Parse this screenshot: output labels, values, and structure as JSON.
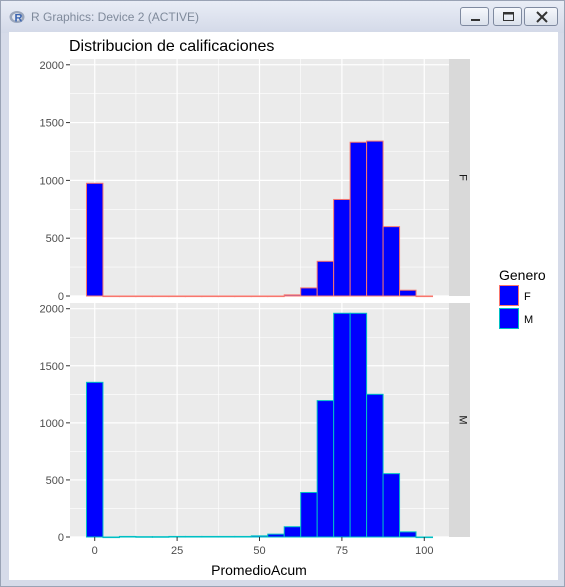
{
  "window": {
    "title": "R Graphics: Device 2 (ACTIVE)",
    "app_icon": "r-logo-icon",
    "controls": [
      "minimize-icon",
      "maximize-icon",
      "close-icon"
    ]
  },
  "colors": {
    "panel_bg": "#ebebeb",
    "grid": "#ffffff",
    "strip_bg": "#d9d9d9",
    "bar_fill": "#0000ff",
    "outline_F": "#f8766d",
    "outline_M": "#00bfc4"
  },
  "chart_data": {
    "type": "bar",
    "subtype": "faceted histogram",
    "title": "Distribucion de calificaciones",
    "xlabel": "PromedioAcum",
    "ylabel": "",
    "xlim": [
      -7.5,
      107.5
    ],
    "ylim": [
      0,
      2050
    ],
    "xticks": [
      0,
      25,
      50,
      75,
      100
    ],
    "yticks": [
      0,
      500,
      1000,
      1500,
      2000
    ],
    "binwidth": 5,
    "legend": {
      "title": "Genero",
      "placement": "right",
      "entries": [
        "F",
        "M"
      ]
    },
    "bin_centers": [
      0,
      5,
      10,
      15,
      20,
      25,
      30,
      35,
      40,
      45,
      50,
      55,
      60,
      65,
      70,
      75,
      80,
      85,
      90,
      95,
      100
    ],
    "series": [
      {
        "name": "F",
        "strip": "F",
        "values": [
          975,
          0,
          0,
          0,
          0,
          0,
          0,
          0,
          0,
          0,
          0,
          0,
          10,
          70,
          300,
          835,
          1330,
          1340,
          600,
          50,
          0
        ]
      },
      {
        "name": "M",
        "strip": "M",
        "values": [
          1355,
          0,
          5,
          3,
          3,
          5,
          5,
          5,
          5,
          5,
          10,
          25,
          90,
          390,
          1195,
          1960,
          1960,
          1250,
          555,
          45,
          0
        ]
      }
    ]
  }
}
